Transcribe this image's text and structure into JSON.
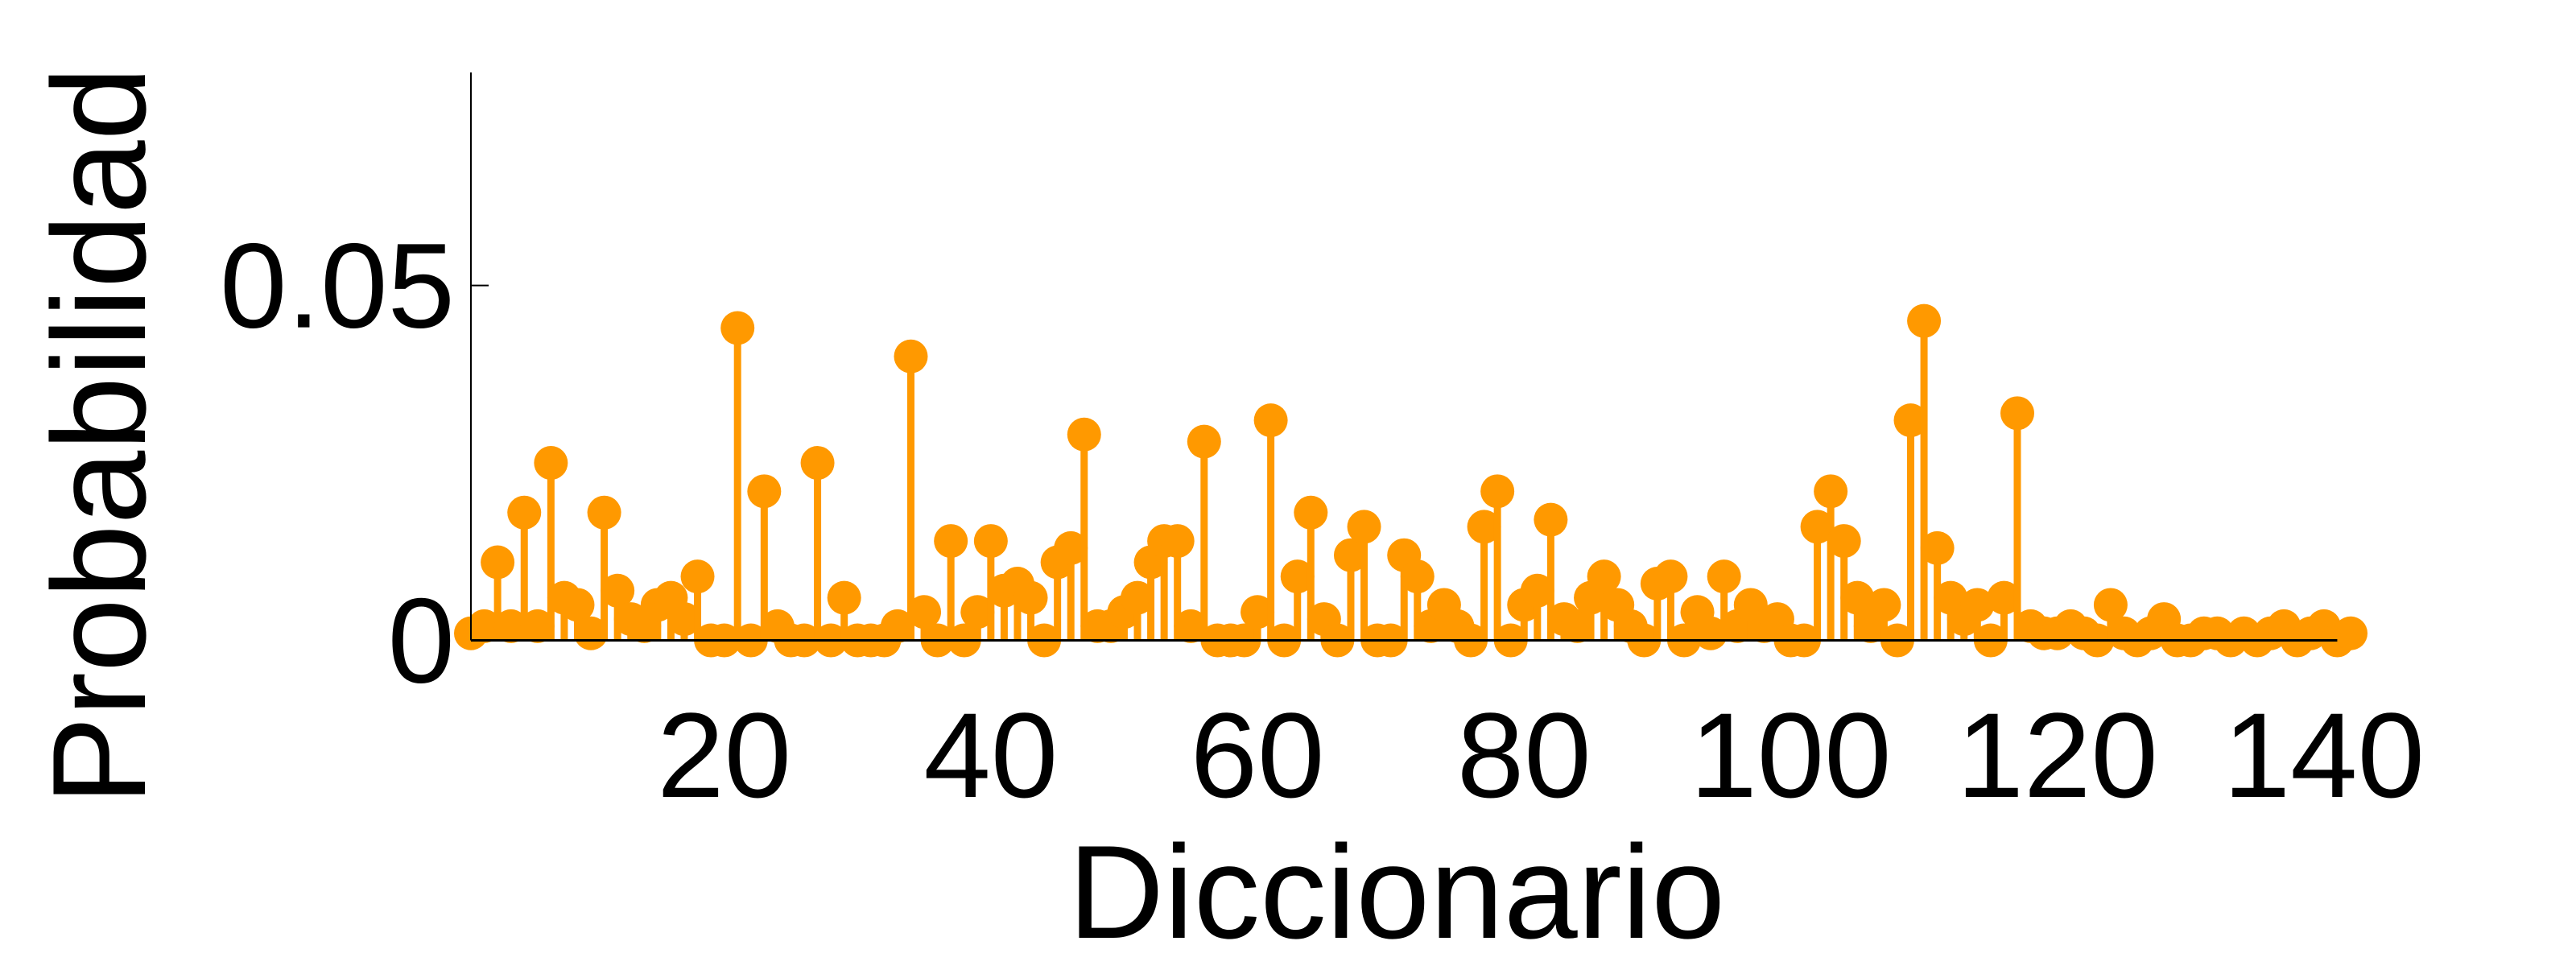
{
  "chart_data": {
    "type": "stem",
    "xlabel": "Diccionario",
    "ylabel": "Probabilidad",
    "xlim": [
      1,
      142
    ],
    "ylim": [
      -0.003,
      0.08
    ],
    "x_ticks": [
      20,
      40,
      60,
      80,
      100,
      120,
      140
    ],
    "x_tick_labels": [
      "20",
      "40",
      "60",
      "80",
      "100",
      "120",
      "140"
    ],
    "y_ticks": [
      0,
      0.05
    ],
    "y_tick_labels": [
      "0",
      "0.05"
    ],
    "grid": false,
    "color": "#FF9900",
    "series": [
      {
        "x": [
          1,
          2,
          3,
          4,
          5,
          6,
          7,
          8,
          9,
          10,
          11,
          12,
          13,
          14,
          15,
          16,
          17,
          18,
          19,
          20,
          21,
          22,
          23,
          24,
          25,
          26,
          27,
          28,
          29,
          30,
          31,
          32,
          33,
          34,
          35,
          36,
          37,
          38,
          39,
          40,
          41,
          42,
          43,
          44,
          45,
          46,
          47,
          48,
          49,
          50,
          51,
          52,
          53,
          54,
          55,
          56,
          57,
          58,
          59,
          60,
          61,
          62,
          63,
          64,
          65,
          66,
          67,
          68,
          69,
          70,
          71,
          72,
          73,
          74,
          75,
          76,
          77,
          78,
          79,
          80,
          81,
          82,
          83,
          84,
          85,
          86,
          87,
          88,
          89,
          90,
          91,
          92,
          93,
          94,
          95,
          96,
          97,
          98,
          99,
          100,
          101,
          102,
          103,
          104,
          105,
          106,
          107,
          108,
          109,
          110,
          111,
          112,
          113,
          114,
          115,
          116,
          117,
          118,
          119,
          120,
          121,
          122,
          123,
          124,
          125,
          126,
          127,
          128,
          129,
          130,
          131,
          132,
          133,
          134,
          135,
          136,
          137,
          138,
          139,
          140,
          141,
          142
        ],
        "y": [
          0.001,
          0.002,
          0.011,
          0.002,
          0.018,
          0.002,
          0.025,
          0.006,
          0.005,
          0.001,
          0.018,
          0.007,
          0.003,
          0.002,
          0.005,
          0.006,
          0.003,
          0.009,
          0,
          0,
          0.044,
          0,
          0.021,
          0.002,
          0,
          0,
          0.025,
          0,
          0.006,
          0,
          0,
          0,
          0.002,
          0.04,
          0.004,
          0,
          0.014,
          0,
          0.004,
          0.014,
          0.007,
          0.008,
          0.006,
          0,
          0.011,
          0.013,
          0.029,
          0.002,
          0.002,
          0.004,
          0.006,
          0.011,
          0.014,
          0.014,
          0.002,
          0.028,
          0,
          0,
          0,
          0.004,
          0.031,
          0,
          0.009,
          0.018,
          0.003,
          0,
          0.012,
          0.016,
          0,
          0,
          0.012,
          0.009,
          0.002,
          0.005,
          0.002,
          0,
          0.016,
          0.021,
          0,
          0.005,
          0.007,
          0.017,
          0.003,
          0.002,
          0.006,
          0.009,
          0.005,
          0.002,
          0,
          0.008,
          0.009,
          0,
          0.004,
          0.001,
          0.009,
          0.002,
          0.005,
          0.002,
          0.003,
          0,
          0,
          0.016,
          0.021,
          0.014,
          0.006,
          0.002,
          0.005,
          0,
          0.031,
          0.045,
          0.013,
          0.006,
          0.003,
          0.005,
          0,
          0.006,
          0.032,
          0.002,
          0.001,
          0.001,
          0.002,
          0.001,
          0,
          0.005,
          0.001,
          0,
          0.001,
          0.003,
          0,
          0,
          0.001,
          0.001,
          0,
          0.001,
          0,
          0.001,
          0.002,
          0,
          0.001,
          0.002,
          0,
          0.001
        ]
      }
    ]
  }
}
